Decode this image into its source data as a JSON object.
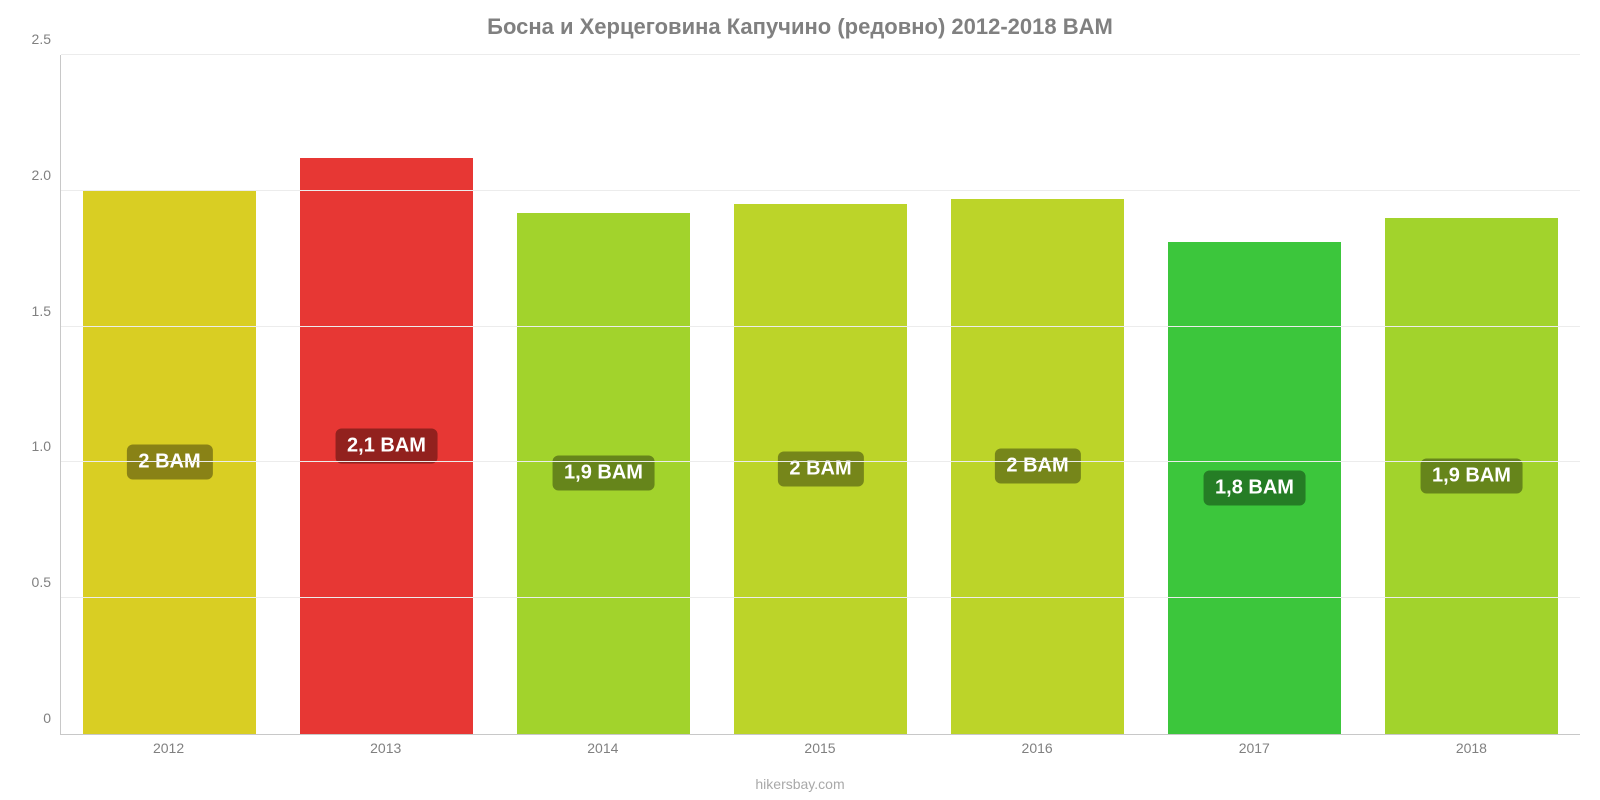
{
  "chart": {
    "type": "bar",
    "title": "Босна и Херцеговина Капучино (редовно) 2012-2018 BAM",
    "title_color": "#808080",
    "title_fontsize": 22,
    "source": "hikersbay.com",
    "source_color": "#a9a9a9",
    "background_color": "#ffffff",
    "grid_color": "#ececec",
    "axis_color": "#c8c8c8",
    "tick_color": "#808080",
    "ylim": [
      0,
      2.5
    ],
    "yticks": [
      0,
      0.5,
      1.0,
      1.5,
      2.0,
      2.5
    ],
    "ytick_labels": [
      "0",
      "0.5",
      "1.0",
      "1.5",
      "2.0",
      "2.5"
    ],
    "bar_width_pct": 80,
    "label_fontsize": 20,
    "label_text_color": "#ffffff",
    "categories": [
      "2012",
      "2013",
      "2014",
      "2015",
      "2016",
      "2017",
      "2018"
    ],
    "values": [
      2.0,
      2.12,
      1.92,
      1.95,
      1.97,
      1.81,
      1.9
    ],
    "display_labels": [
      "2 BAM",
      "2,1 BAM",
      "1,9 BAM",
      "2 BAM",
      "2 BAM",
      "1,8 BAM",
      "1,9 BAM"
    ],
    "bar_colors": [
      "#d9ce23",
      "#e73734",
      "#a2d32c",
      "#bcd429",
      "#bcd429",
      "#3cc63c",
      "#a2d32c"
    ],
    "label_bg_colors": [
      "#898216",
      "#92211e",
      "#66851b",
      "#76861a",
      "#76861a",
      "#257d25",
      "#66851b"
    ]
  }
}
